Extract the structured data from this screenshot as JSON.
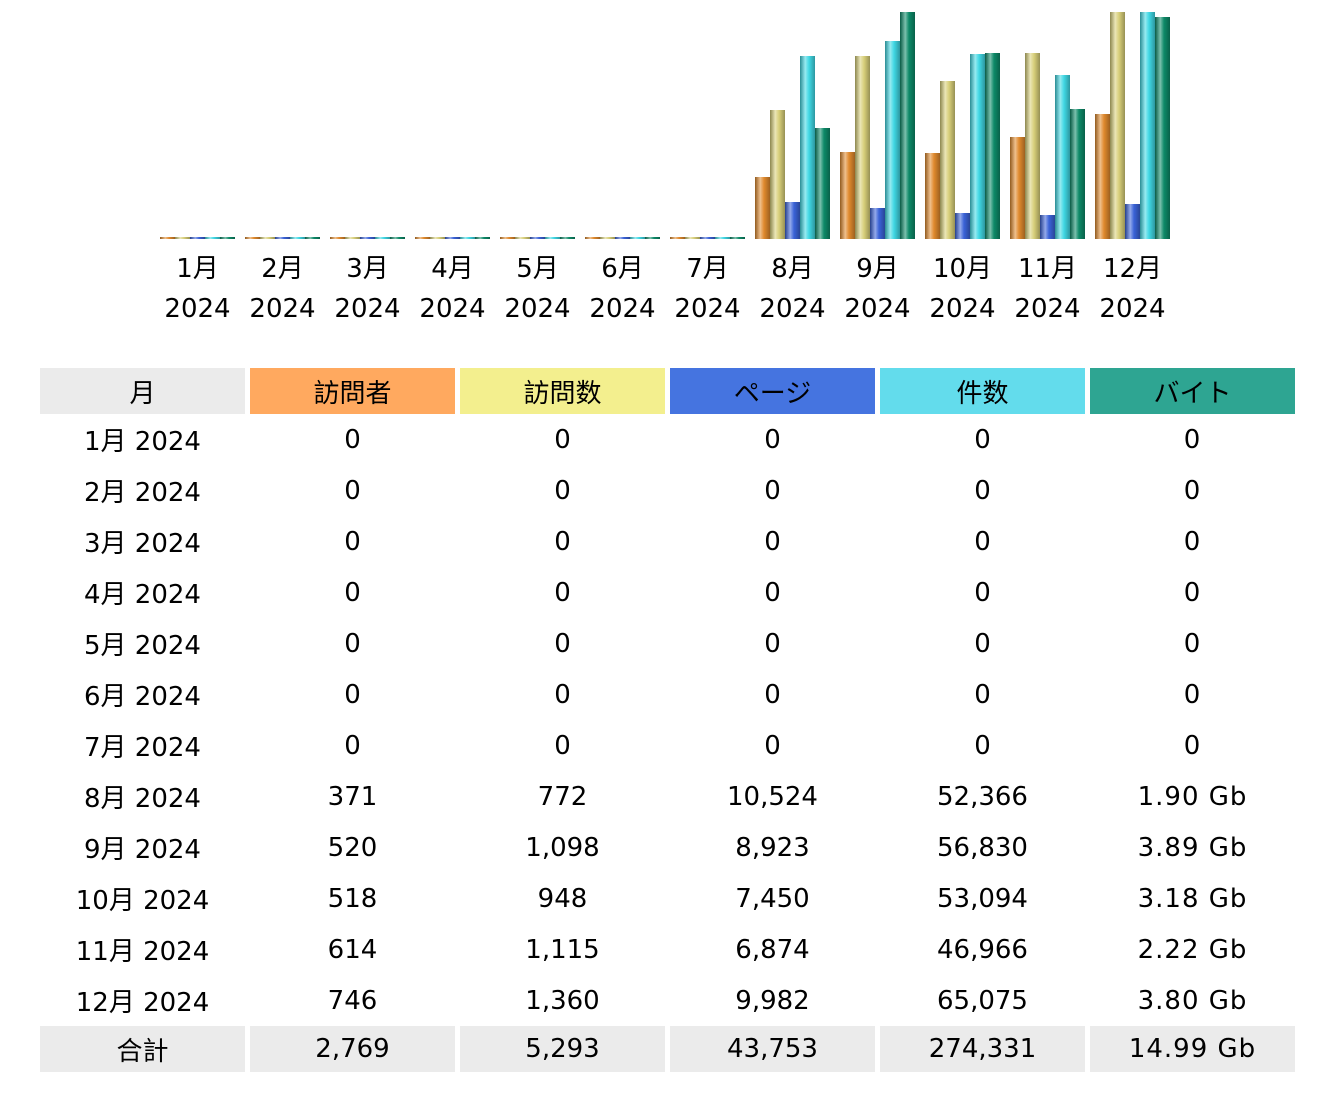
{
  "chart_data": {
    "type": "bar",
    "categories": [
      [
        "1月",
        "2024"
      ],
      [
        "2月",
        "2024"
      ],
      [
        "3月",
        "2024"
      ],
      [
        "4月",
        "2024"
      ],
      [
        "5月",
        "2024"
      ],
      [
        "6月",
        "2024"
      ],
      [
        "7月",
        "2024"
      ],
      [
        "8月",
        "2024"
      ],
      [
        "9月",
        "2024"
      ],
      [
        "10月",
        "2024"
      ],
      [
        "11月",
        "2024"
      ],
      [
        "12月",
        "2024"
      ]
    ],
    "series": [
      {
        "name": "訪問者",
        "values": [
          0,
          0,
          0,
          0,
          0,
          0,
          0,
          371,
          520,
          518,
          614,
          746
        ],
        "color": "#e08a2e",
        "axis": "visits"
      },
      {
        "name": "訪問数",
        "values": [
          0,
          0,
          0,
          0,
          0,
          0,
          0,
          772,
          1098,
          948,
          1115,
          1360
        ],
        "color": "#d8cf7a",
        "axis": "visits"
      },
      {
        "name": "ページ",
        "values": [
          0,
          0,
          0,
          0,
          0,
          0,
          0,
          10524,
          8923,
          7450,
          6874,
          9982
        ],
        "color": "#3a63d8",
        "axis": "hits"
      },
      {
        "name": "件数",
        "values": [
          0,
          0,
          0,
          0,
          0,
          0,
          0,
          52366,
          56830,
          53094,
          46966,
          65075
        ],
        "color": "#40d8e4",
        "axis": "hits"
      },
      {
        "name": "バイト",
        "values": [
          0,
          0,
          0,
          0,
          0,
          0,
          0,
          1.9,
          3.89,
          3.18,
          2.22,
          3.8
        ],
        "color": "#0d8a68",
        "axis": "bytes"
      }
    ],
    "scales": {
      "visits": [
        0,
        1360
      ],
      "hits": [
        0,
        65075
      ],
      "bytes": [
        0,
        3.89
      ]
    }
  },
  "table": {
    "headers": [
      {
        "label": "月",
        "color": "#ebebeb"
      },
      {
        "label": "訪問者",
        "color": "#ffa95f"
      },
      {
        "label": "訪問数",
        "color": "#f3ef8e"
      },
      {
        "label": "ページ",
        "color": "#4574e0"
      },
      {
        "label": "件数",
        "color": "#63dcec"
      },
      {
        "label": "バイト",
        "color": "#2ea592"
      }
    ],
    "rows": [
      [
        "1月 2024",
        "0",
        "0",
        "0",
        "0",
        "0"
      ],
      [
        "2月 2024",
        "0",
        "0",
        "0",
        "0",
        "0"
      ],
      [
        "3月 2024",
        "0",
        "0",
        "0",
        "0",
        "0"
      ],
      [
        "4月 2024",
        "0",
        "0",
        "0",
        "0",
        "0"
      ],
      [
        "5月 2024",
        "0",
        "0",
        "0",
        "0",
        "0"
      ],
      [
        "6月 2024",
        "0",
        "0",
        "0",
        "0",
        "0"
      ],
      [
        "7月 2024",
        "0",
        "0",
        "0",
        "0",
        "0"
      ],
      [
        "8月 2024",
        "371",
        "772",
        "10,524",
        "52,366",
        "1.90 Gb"
      ],
      [
        "9月 2024",
        "520",
        "1,098",
        "8,923",
        "56,830",
        "3.89 Gb"
      ],
      [
        "10月 2024",
        "518",
        "948",
        "7,450",
        "53,094",
        "3.18 Gb"
      ],
      [
        "11月 2024",
        "614",
        "1,115",
        "6,874",
        "46,966",
        "2.22 Gb"
      ],
      [
        "12月 2024",
        "746",
        "1,360",
        "9,982",
        "65,075",
        "3.80 Gb"
      ]
    ],
    "total": [
      "合計",
      "2,769",
      "5,293",
      "43,753",
      "274,331",
      "14.99 Gb"
    ]
  }
}
